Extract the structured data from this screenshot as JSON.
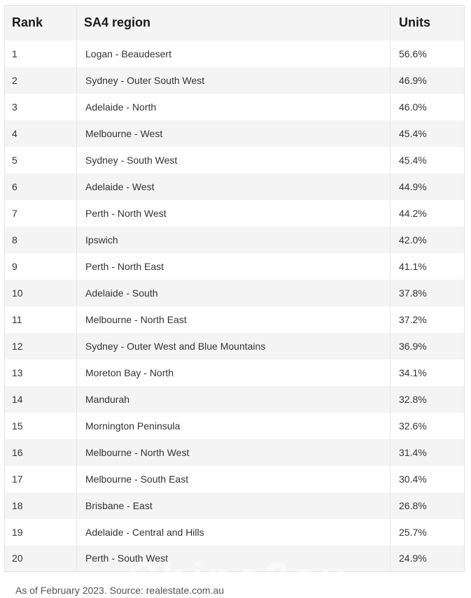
{
  "table": {
    "headers": {
      "rank": "Rank",
      "region": "SA4 region",
      "units": "Units"
    },
    "rows": [
      {
        "rank": "1",
        "region": "Logan - Beaudesert",
        "units": "56.6%"
      },
      {
        "rank": "2",
        "region": "Sydney - Outer South West",
        "units": "46.9%"
      },
      {
        "rank": "3",
        "region": "Adelaide - North",
        "units": "46.0%"
      },
      {
        "rank": "4",
        "region": "Melbourne - West",
        "units": "45.4%"
      },
      {
        "rank": "5",
        "region": "Sydney - South West",
        "units": "45.4%"
      },
      {
        "rank": "6",
        "region": "Adelaide - West",
        "units": "44.9%"
      },
      {
        "rank": "7",
        "region": "Perth - North West",
        "units": "44.2%"
      },
      {
        "rank": "8",
        "region": "Ipswich",
        "units": "42.0%"
      },
      {
        "rank": "9",
        "region": "Perth - North East",
        "units": "41.1%"
      },
      {
        "rank": "10",
        "region": "Adelaide - South",
        "units": "37.8%"
      },
      {
        "rank": "11",
        "region": "Melbourne - North East",
        "units": "37.2%"
      },
      {
        "rank": "12",
        "region": "Sydney - Outer West and Blue Mountains",
        "units": "36.9%"
      },
      {
        "rank": "13",
        "region": "Moreton Bay - North",
        "units": "34.1%"
      },
      {
        "rank": "14",
        "region": "Mandurah",
        "units": "32.8%"
      },
      {
        "rank": "15",
        "region": "Mornington Peninsula",
        "units": "32.6%"
      },
      {
        "rank": "16",
        "region": "Melbourne - North West",
        "units": "31.4%"
      },
      {
        "rank": "17",
        "region": "Melbourne - South East",
        "units": "30.4%"
      },
      {
        "rank": "18",
        "region": "Brisbane - East",
        "units": "26.8%"
      },
      {
        "rank": "19",
        "region": "Adelaide - Central and Hills",
        "units": "25.7%"
      },
      {
        "rank": "20",
        "region": "Perth - South West",
        "units": "24.9%"
      }
    ]
  },
  "caption": "As of February 2023. Source: realestate.com.au"
}
